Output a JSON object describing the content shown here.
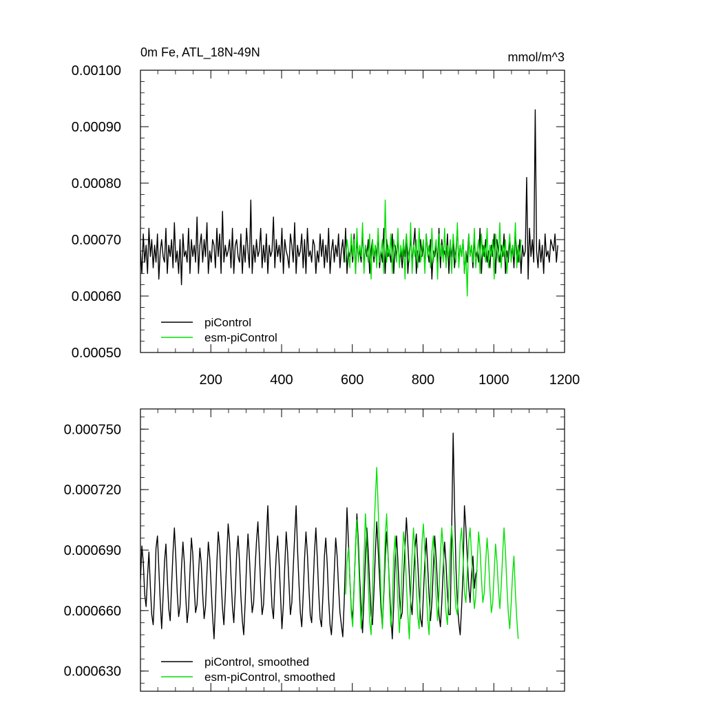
{
  "colors": {
    "piControl": "#000000",
    "esm_piControl": "#00e000"
  },
  "chart_data": [
    {
      "type": "line",
      "title": "0m Fe, ATL_18N-49N",
      "units": "mmol/m^3",
      "xlim": [
        1,
        1200
      ],
      "ylim": [
        0.0005,
        0.001
      ],
      "x_ticks": [
        200,
        400,
        600,
        800,
        1000,
        1200
      ],
      "x_tick_labels": [
        "200",
        "400",
        "600",
        "800",
        "1000",
        "1200"
      ],
      "y_ticks": [
        0.0005,
        0.0006,
        0.0007,
        0.0008,
        0.0009,
        0.001
      ],
      "y_tick_labels": [
        "0.00050",
        "0.00060",
        "0.00070",
        "0.00080",
        "0.00090",
        "0.00100"
      ],
      "legend": {
        "placement": "bottom-left",
        "entries": [
          "piControl",
          "esm-piControl"
        ]
      },
      "series": [
        {
          "name": "piControl",
          "color": "#000000",
          "x_start": 1,
          "x_step": 4,
          "values": [
            0.00068,
            0.00064,
            0.00071,
            0.00066,
            0.00069,
            0.00064,
            0.00072,
            0.00067,
            0.0007,
            0.00065,
            0.00069,
            0.00066,
            0.00071,
            0.00063,
            0.00068,
            0.0007,
            0.00067,
            0.00066,
            0.00072,
            0.00064,
            0.00069,
            0.00067,
            0.0007,
            0.00065,
            0.00073,
            0.00066,
            0.00068,
            0.00064,
            0.0007,
            0.00062,
            0.00071,
            0.00067,
            0.00068,
            0.00066,
            0.00072,
            0.00064,
            0.0007,
            0.00067,
            0.00069,
            0.00066,
            0.00074,
            0.00064,
            0.00069,
            0.00071,
            0.00066,
            0.0007,
            0.00067,
            0.00073,
            0.00064,
            0.00068,
            0.00066,
            0.0007,
            0.00069,
            0.00065,
            0.00072,
            0.00067,
            0.00071,
            0.00064,
            0.00075,
            0.00066,
            0.00069,
            0.00067,
            0.00068,
            0.0007,
            0.00065,
            0.00072,
            0.00064,
            0.00069,
            0.0007,
            0.00067,
            0.00066,
            0.00071,
            0.00064,
            0.00069,
            0.00066,
            0.00072,
            0.00068,
            0.00065,
            0.00077,
            0.00064,
            0.00069,
            0.00066,
            0.0007,
            0.00067,
            0.00068,
            0.00072,
            0.00065,
            0.00069,
            0.00066,
            0.00071,
            0.00064,
            0.00069,
            0.00067,
            0.00068,
            0.00074,
            0.00065,
            0.0007,
            0.00067,
            0.00069,
            0.00066,
            0.00072,
            0.00064,
            0.0007,
            0.00068,
            0.00067,
            0.00065,
            0.00071,
            0.00069,
            0.00066,
            0.00073,
            0.00064,
            0.00069,
            0.00067,
            0.00068,
            0.00071,
            0.00065,
            0.0007,
            0.00064,
            0.00072,
            0.00067,
            0.00068,
            0.00066,
            0.0007,
            0.00069,
            0.00064,
            0.00068,
            0.00066,
            0.00071,
            0.00067,
            0.0007,
            0.00065,
            0.00069,
            0.00066,
            0.00072,
            0.00064,
            0.00068,
            0.0007,
            0.00066,
            0.00069,
            0.00067,
            0.00071,
            0.00065,
            0.00068,
            0.0007,
            0.00066,
            0.00072,
            0.00064,
            0.00068,
            0.00067,
            0.00069,
            0.00066,
            0.00071,
            0.00064,
            0.0007,
            0.00067,
            0.00068,
            0.00066,
            0.00072,
            0.00065,
            0.00069,
            0.00067,
            0.0007,
            0.00064,
            0.00068,
            0.0007,
            0.00066,
            0.00069,
            0.00067,
            0.00071,
            0.00065,
            0.00068,
            0.00066,
            0.00072,
            0.00064,
            0.0007,
            0.00067,
            0.00068,
            0.00066,
            0.00071,
            0.00064,
            0.00069,
            0.00067,
            0.0007,
            0.00066,
            0.00068,
            0.00065,
            0.00069,
            0.00067,
            0.00071,
            0.00064,
            0.00068,
            0.0007,
            0.00066,
            0.00069,
            0.00072,
            0.00064,
            0.00068,
            0.00066,
            0.0007,
            0.00067,
            0.00069,
            0.00065,
            0.00071,
            0.00068,
            0.00066,
            0.0007,
            0.00063,
            0.00068,
            0.00067,
            0.00069,
            0.00066,
            0.00072,
            0.00065,
            0.0007,
            0.00067,
            0.00068,
            0.00066,
            0.00071,
            0.00064,
            0.00069,
            0.00067,
            0.0007,
            0.00065,
            0.00068,
            0.00072,
            0.00066,
            0.00069,
            0.00067,
            0.0007,
            0.00064,
            0.00068,
            0.00066,
            0.00071,
            0.00067,
            0.00069,
            0.00065,
            0.0007,
            0.00067,
            0.00068,
            0.00066,
            0.00072,
            0.00064,
            0.00069,
            0.00067,
            0.0007,
            0.00066,
            0.00068,
            0.00065,
            0.00069,
            0.00067,
            0.00071,
            0.00064,
            0.0007,
            0.00068,
            0.00066,
            0.00069,
            0.00067,
            0.00071,
            0.00064,
            0.00068,
            0.00066,
            0.0007,
            0.00067,
            0.00069,
            0.00065,
            0.00071,
            0.00068,
            0.00066,
            0.0007,
            0.00064,
            0.00069,
            0.00067,
            0.00068,
            0.00081,
            0.00063,
            0.00072,
            0.00067,
            0.0007,
            0.00066,
            0.00093,
            0.00068,
            0.00065,
            0.0007,
            0.00066,
            0.00069,
            0.00064,
            0.00071,
            0.00067,
            0.00068,
            0.00066,
            0.0007,
            0.00069,
            0.00068,
            0.00071,
            0.00066,
            0.00069
          ]
        },
        {
          "name": "esm-piControl",
          "color": "#00e000",
          "x_start": 581,
          "x_step": 4,
          "values": [
            0.00066,
            0.0007,
            0.00068,
            0.00065,
            0.00071,
            0.00067,
            0.0007,
            0.00064,
            0.00072,
            0.00066,
            0.00069,
            0.00067,
            0.00073,
            0.00064,
            0.00069,
            0.00068,
            0.00066,
            0.00071,
            0.00063,
            0.0007,
            0.00067,
            0.00069,
            0.00065,
            0.00072,
            0.00066,
            0.00068,
            0.0007,
            0.00064,
            0.00077,
            0.00066,
            0.00069,
            0.00067,
            0.00071,
            0.00064,
            0.0007,
            0.00068,
            0.00066,
            0.00072,
            0.00065,
            0.00069,
            0.00067,
            0.0007,
            0.00063,
            0.00071,
            0.00068,
            0.00066,
            0.00073,
            0.00064,
            0.00069,
            0.00067,
            0.0007,
            0.00065,
            0.00072,
            0.00066,
            0.00068,
            0.0007,
            0.00064,
            0.00071,
            0.00067,
            0.00069,
            0.00065,
            0.00072,
            0.00066,
            0.00068,
            0.0007,
            0.00063,
            0.00071,
            0.00067,
            0.00069,
            0.00066,
            0.00072,
            0.00065,
            0.00069,
            0.00067,
            0.0007,
            0.00064,
            0.00071,
            0.00068,
            0.00066,
            0.00073,
            0.00065,
            0.00069,
            0.00067,
            0.0007,
            0.00064,
            0.00068,
            0.0006,
            0.00071,
            0.00067,
            0.00069,
            0.00066,
            0.00072,
            0.00065,
            0.00068,
            0.0007,
            0.00064,
            0.00071,
            0.00067,
            0.00069,
            0.00066,
            0.00072,
            0.00065,
            0.00069,
            0.00067,
            0.0007,
            0.00063,
            0.00071,
            0.00068,
            0.00066,
            0.00073,
            0.00065,
            0.00069,
            0.00067,
            0.0007,
            0.00064,
            0.00068,
            0.00071,
            0.00066,
            0.00069,
            0.00067,
            0.00073,
            0.00065,
            0.00069,
            0.00066,
            0.0007
          ]
        }
      ]
    },
    {
      "type": "line",
      "xlim": [
        1,
        1200
      ],
      "ylim": [
        0.00062,
        0.00076
      ],
      "x_ticks": [
        200,
        400,
        600,
        800,
        1000,
        1200
      ],
      "y_ticks": [
        0.00063,
        0.00066,
        0.00069,
        0.00072,
        0.00075
      ],
      "y_tick_labels": [
        "0.000630",
        "0.000660",
        "0.000690",
        "0.000720",
        "0.000750"
      ],
      "legend": {
        "placement": "bottom-left",
        "entries": [
          "piControl, smoothed",
          "esm-piControl, smoothed"
        ]
      },
      "series": [
        {
          "name": "piControl, smoothed",
          "color": "#000000",
          "x_start": 1,
          "x_step": 4,
          "values": [
            0.000675,
            0.000692,
            0.000684,
            0.000668,
            0.000662,
            0.000677,
            0.000689,
            0.000672,
            0.000658,
            0.000653,
            0.000669,
            0.000691,
            0.000697,
            0.000681,
            0.000664,
            0.000651,
            0.000667,
            0.000684,
            0.000693,
            0.000676,
            0.000661,
            0.000655,
            0.000672,
            0.000689,
            0.000701,
            0.000686,
            0.000669,
            0.000657,
            0.000662,
            0.000681,
            0.000694,
            0.000684,
            0.000667,
            0.000654,
            0.000661,
            0.000679,
            0.000696,
            0.000688,
            0.000671,
            0.000659,
            0.000663,
            0.000678,
            0.000691,
            0.000683,
            0.000668,
            0.000656,
            0.000662,
            0.000679,
            0.000694,
            0.000686,
            0.000671,
            0.000657,
            0.000646,
            0.000663,
            0.000684,
            0.000699,
            0.000691,
            0.000675,
            0.000661,
            0.000653,
            0.000668,
            0.000687,
            0.000703,
            0.000694,
            0.000677,
            0.000662,
            0.000654,
            0.000669,
            0.000688,
            0.000697,
            0.000684,
            0.000667,
            0.000655,
            0.000648,
            0.000664,
            0.000683,
            0.000698,
            0.000687,
            0.000671,
            0.000659,
            0.000664,
            0.000681,
            0.000694,
            0.000704,
            0.000689,
            0.000672,
            0.000658,
            0.000663,
            0.000679,
            0.000696,
            0.000712,
            0.000693,
            0.000677,
            0.000662,
            0.000656,
            0.000673,
            0.000688,
            0.000697,
            0.000684,
            0.000668,
            0.000651,
            0.000663,
            0.000682,
            0.000699,
            0.000689,
            0.000673,
            0.000658,
            0.000664,
            0.000681,
            0.000697,
            0.000712,
            0.000691,
            0.000674,
            0.000659,
            0.000652,
            0.000667,
            0.000686,
            0.000699,
            0.000688,
            0.000672,
            0.000658,
            0.000654,
            0.000671,
            0.000689,
            0.000701,
            0.000686,
            0.000669,
            0.000656,
            0.000652,
            0.000668,
            0.000687,
            0.000696,
            0.000683,
            0.000666,
            0.000653,
            0.000648,
            0.000661,
            0.000679,
            0.000696,
            0.000687,
            0.000672,
            0.000659,
            0.000653,
            0.000647,
            0.000664,
            0.000687,
            0.000711,
            0.000694,
            0.000676,
            0.000661,
            0.000656,
            0.000672,
            0.000691,
            0.000708,
            0.000694,
            0.000676,
            0.000661,
            0.000649,
            0.000666,
            0.000686,
            0.000701,
            0.000689,
            0.000673,
            0.000658,
            0.000653,
            0.000669,
            0.000688,
            0.000704,
            0.000691,
            0.000676,
            0.000661,
            0.000652,
            0.000668,
            0.000686,
            0.000699,
            0.000688,
            0.000672,
            0.000658,
            0.000646,
            0.000663,
            0.000684,
            0.000697,
            0.000684,
            0.000668,
            0.000656,
            0.000659,
            0.000676,
            0.000692,
            0.000706,
            0.000693,
            0.000678,
            0.000664,
            0.000658,
            0.000674,
            0.000691,
            0.000698,
            0.000684,
            0.000669,
            0.000656,
            0.000652,
            0.000668,
            0.000684,
            0.000696,
            0.000682,
            0.000668,
            0.000655,
            0.000664,
            0.000681,
            0.000697,
            0.000686,
            0.000671,
            0.000658,
            0.000652,
            0.000664,
            0.000681,
            0.000694,
            0.000683,
            0.000668,
            0.000658,
            0.000658,
            0.000701,
            0.000748,
            0.000712,
            0.000681,
            0.000664,
            0.000654,
            0.000648,
            0.000662,
            0.000679,
            0.000712,
            0.000701,
            0.000687,
            0.000672,
            0.000664,
            0.000678,
            0.000687,
            0.000671,
            0.000678,
            0.00068
          ]
        },
        {
          "name": "esm-piControl, smoothed",
          "color": "#00e000",
          "x_start": 581,
          "x_step": 4,
          "values": [
            0.000668,
            0.000684,
            0.000691,
            0.000676,
            0.000659,
            0.000652,
            0.000671,
            0.000693,
            0.000705,
            0.000688,
            0.000669,
            0.000651,
            0.000664,
            0.000686,
            0.000708,
            0.000694,
            0.000673,
            0.000655,
            0.000648,
            0.000671,
            0.000697,
            0.000715,
            0.000731,
            0.000712,
            0.000689,
            0.000667,
            0.000651,
            0.000672,
            0.000696,
            0.000708,
            0.000689,
            0.000668,
            0.000652,
            0.000664,
            0.000687,
            0.000697,
            0.000681,
            0.000664,
            0.000649,
            0.000662,
            0.000684,
            0.000699,
            0.000691,
            0.000673,
            0.000658,
            0.000646,
            0.000667,
            0.000688,
            0.000701,
            0.000689,
            0.000671,
            0.000657,
            0.000651,
            0.000673,
            0.000694,
            0.000703,
            0.000689,
            0.000671,
            0.000656,
            0.000648,
            0.000669,
            0.000689,
            0.000697,
            0.000684,
            0.000667,
            0.000655,
            0.000668,
            0.000688,
            0.000701,
            0.000691,
            0.000674,
            0.000659,
            0.000653,
            0.000671,
            0.000692,
            0.000702,
            0.000689,
            0.000672,
            0.000661,
            0.000658,
            0.000676,
            0.000694,
            0.000701,
            0.000686,
            0.000669,
            0.000664,
            0.000679,
            0.000694,
            0.000701,
            0.000688,
            0.000673,
            0.000661,
            0.000667,
            0.000684,
            0.000699,
            0.000691,
            0.000676,
            0.000664,
            0.000669,
            0.000684,
            0.000696,
            0.000686,
            0.000671,
            0.000659,
            0.000664,
            0.000679,
            0.000693,
            0.000684,
            0.000671,
            0.000661,
            0.000672,
            0.000688,
            0.000701,
            0.000689,
            0.000672,
            0.000659,
            0.000651,
            0.000663,
            0.000678,
            0.000687,
            0.000669,
            0.000656,
            0.000646
          ]
        }
      ]
    }
  ]
}
